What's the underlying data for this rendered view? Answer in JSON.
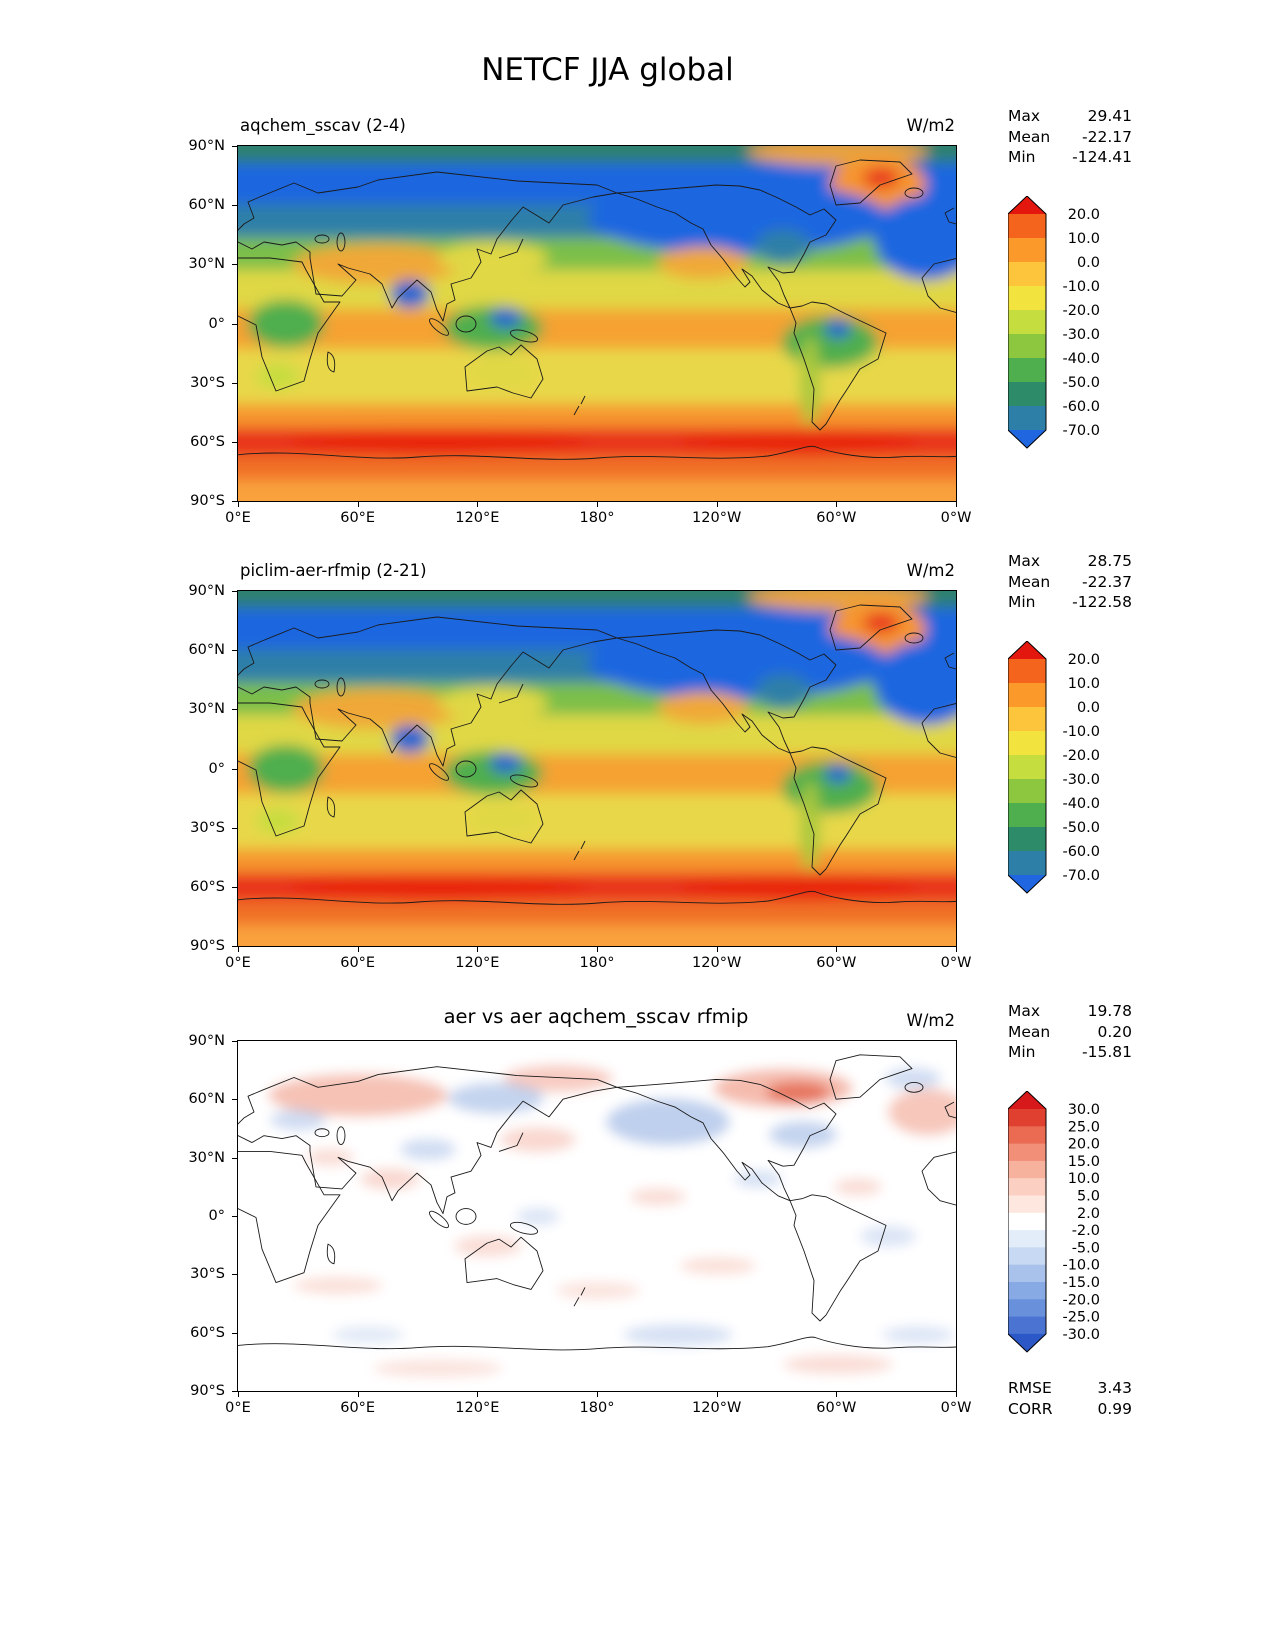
{
  "title": "NETCF JJA global",
  "panels": [
    {
      "title": "aqchem_sscav (2-4)",
      "units": "W/m2",
      "stats": [
        {
          "label": "Max",
          "value": "29.41"
        },
        {
          "label": "Mean",
          "value": "-22.17"
        },
        {
          "label": "Min",
          "value": "-124.41"
        }
      ],
      "yticks": [
        "90°N",
        "60°N",
        "30°N",
        "0°",
        "30°S",
        "60°S",
        "90°S"
      ],
      "xticks": [
        "0°E",
        "60°E",
        "120°E",
        "180°",
        "120°W",
        "60°W",
        "0°W"
      ],
      "colorbar": {
        "over_color": "#e3170d",
        "segment_colors": [
          "#f4641c",
          "#fb9a2b",
          "#fdc53c",
          "#f2e33f",
          "#c6dd3f",
          "#8dc63f",
          "#4fae4e",
          "#2e8b6a",
          "#2d7fa8"
        ],
        "under_color": "#1f66e0",
        "labels": [
          "20.0",
          "10.0",
          "0.0",
          "-10.0",
          "-20.0",
          "-30.0",
          "-40.0",
          "-50.0",
          "-60.0",
          "-70.0"
        ]
      }
    },
    {
      "title": "piclim-aer-rfmip (2-21)",
      "units": "W/m2",
      "stats": [
        {
          "label": "Max",
          "value": "28.75"
        },
        {
          "label": "Mean",
          "value": "-22.37"
        },
        {
          "label": "Min",
          "value": "-122.58"
        }
      ],
      "yticks": [
        "90°N",
        "60°N",
        "30°N",
        "0°",
        "30°S",
        "60°S",
        "90°S"
      ],
      "xticks": [
        "0°E",
        "60°E",
        "120°E",
        "180°",
        "120°W",
        "60°W",
        "0°W"
      ],
      "colorbar": {
        "over_color": "#e3170d",
        "segment_colors": [
          "#f4641c",
          "#fb9a2b",
          "#fdc53c",
          "#f2e33f",
          "#c6dd3f",
          "#8dc63f",
          "#4fae4e",
          "#2e8b6a",
          "#2d7fa8"
        ],
        "under_color": "#1f66e0",
        "labels": [
          "20.0",
          "10.0",
          "0.0",
          "-10.0",
          "-20.0",
          "-30.0",
          "-40.0",
          "-50.0",
          "-60.0",
          "-70.0"
        ]
      }
    },
    {
      "title": "aer vs aer aqchem_sscav rfmip",
      "units": "W/m2",
      "stats": [
        {
          "label": "Max",
          "value": "19.78"
        },
        {
          "label": "Mean",
          "value": "0.20"
        },
        {
          "label": "Min",
          "value": "-15.81"
        }
      ],
      "extra": [
        {
          "label": "RMSE",
          "value": "3.43"
        },
        {
          "label": "CORR",
          "value": "0.99"
        }
      ],
      "yticks": [
        "90°N",
        "60°N",
        "30°N",
        "0°",
        "30°S",
        "60°S",
        "90°S"
      ],
      "xticks": [
        "0°E",
        "60°E",
        "120°E",
        "180°",
        "120°W",
        "60°W",
        "0°W"
      ],
      "colorbar": {
        "over_color": "#d7191c",
        "segment_colors": [
          "#e04030",
          "#ea6a52",
          "#f18f79",
          "#f7b29e",
          "#fbd0c2",
          "#fde7de",
          "#ffffff",
          "#e3ecf9",
          "#c8d9f3",
          "#a9c2ec",
          "#88aae4",
          "#6890db",
          "#4a73d2"
        ],
        "under_color": "#2b57c7",
        "labels": [
          "30.0",
          "25.0",
          "20.0",
          "15.0",
          "10.0",
          "5.0",
          "2.0",
          "-2.0",
          "-5.0",
          "-10.0",
          "-15.0",
          "-20.0",
          "-25.0",
          "-30.0"
        ]
      }
    }
  ],
  "chart_data": [
    {
      "type": "heatmap",
      "title": "aqchem_sscav (2-4)",
      "units": "W/m2",
      "projection": "global lon-lat, 0°E to 0°W, 90°N to 90°S",
      "stats": {
        "max": 29.41,
        "mean": -22.17,
        "min": -124.41
      },
      "contour_levels": [
        20,
        10,
        0,
        -10,
        -20,
        -30,
        -40,
        -50,
        -60,
        -70
      ],
      "x_ticks": [
        "0°E",
        "60°E",
        "120°E",
        "180°",
        "120°W",
        "60°W",
        "0°W"
      ],
      "y_ticks": [
        "90°N",
        "60°N",
        "30°N",
        "0°",
        "30°S",
        "60°S",
        "90°S"
      ],
      "description": "Filled contour map: deep blue (< -70 W/m2) over Arctic ocean and North Pacific/North Atlantic storm tracks, orange blob over Greenland, yellow-green mid values over continents and tropics, orange subtropical bands, bright red band (> 20 W/m2) circling ~60°S, orange over Antarctica."
    },
    {
      "type": "heatmap",
      "title": "piclim-aer-rfmip (2-21)",
      "units": "W/m2",
      "projection": "global lon-lat, 0°E to 0°W, 90°N to 90°S",
      "stats": {
        "max": 28.75,
        "mean": -22.37,
        "min": -122.58
      },
      "contour_levels": [
        20,
        10,
        0,
        -10,
        -20,
        -30,
        -40,
        -50,
        -60,
        -70
      ],
      "x_ticks": [
        "0°E",
        "60°E",
        "120°E",
        "180°",
        "120°W",
        "60°W",
        "0°W"
      ],
      "y_ticks": [
        "90°N",
        "60°N",
        "30°N",
        "0°",
        "30°S",
        "60°S",
        "90°S"
      ],
      "description": "Nearly identical pattern to panel 1: blue polar/storm-track minima, orange Greenland, yellow-green midlatitudes, red maximum band near 60°S."
    },
    {
      "type": "heatmap",
      "title": "aer vs aer aqchem_sscav rfmip",
      "units": "W/m2",
      "projection": "global lon-lat, 0°E to 0°W, 90°N to 90°S",
      "stats": {
        "max": 19.78,
        "mean": 0.2,
        "min": -15.81,
        "rmse": 3.43,
        "corr": 0.99
      },
      "contour_levels": [
        30,
        25,
        20,
        15,
        10,
        5,
        2,
        -2,
        -5,
        -10,
        -15,
        -20,
        -25,
        -30
      ],
      "x_ticks": [
        "0°E",
        "60°E",
        "120°E",
        "180°",
        "120°W",
        "60°W",
        "0°W"
      ],
      "y_ticks": [
        "90°N",
        "60°N",
        "30°N",
        "0°",
        "30°S",
        "60°S",
        "90°S"
      ],
      "description": "Difference map, mostly white (within ±2 W/m2) with faint scattered red patches (high Arctic, Canada, northern Eurasia, North Atlantic) and faint blue patches (North Pacific, central Siberia, eastern North America)."
    }
  ]
}
